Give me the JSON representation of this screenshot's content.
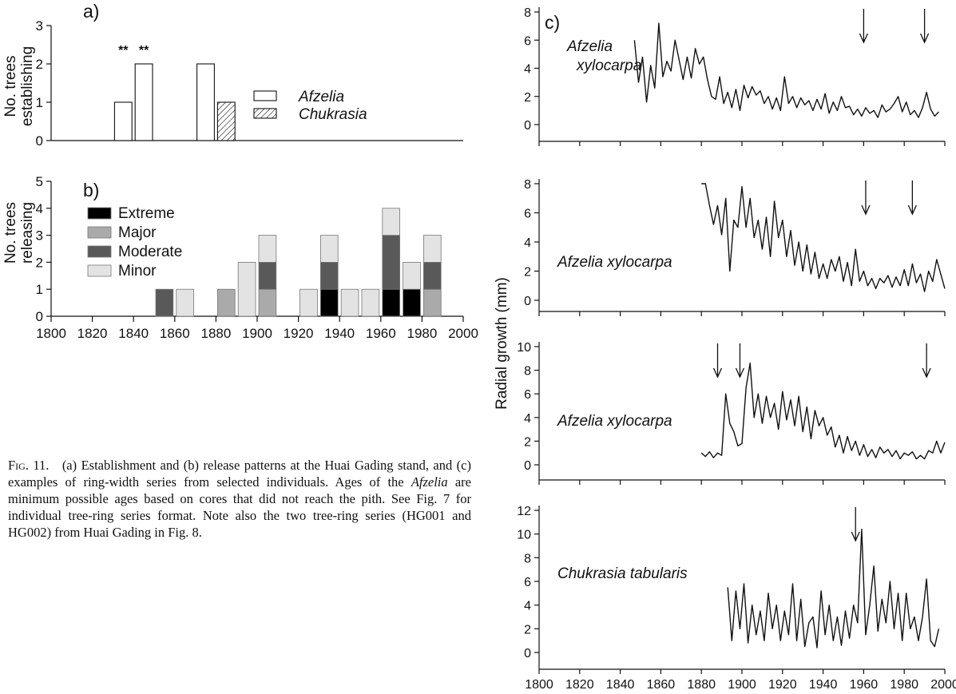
{
  "chart_data": [
    {
      "panel": "a)",
      "type": "bar",
      "ylabel": "No. trees establishing",
      "ylim": [
        0,
        3
      ],
      "yticks": [
        "0",
        "1",
        "2",
        "3"
      ],
      "xlim": [
        1800,
        2000
      ],
      "legend": [
        {
          "name": "Afzelia",
          "fill": "#ffffff",
          "pattern": "none"
        },
        {
          "name": "Chukrasia",
          "fill": "#ffffff",
          "pattern": "hatch"
        }
      ],
      "bars": [
        {
          "x": 1830,
          "value": 1,
          "species": "Afzelia"
        },
        {
          "x": 1840,
          "value": 2,
          "species": "Afzelia"
        },
        {
          "x": 1870,
          "value": 2,
          "species": "Afzelia"
        },
        {
          "x": 1880,
          "value": 1,
          "species": "Chukrasia"
        }
      ],
      "annotations": [
        {
          "x": 1835,
          "text": "**"
        },
        {
          "x": 1845,
          "text": "**"
        }
      ]
    },
    {
      "panel": "b)",
      "type": "bar",
      "stacked": true,
      "ylabel": "No. trees releasing",
      "ylim": [
        0,
        5
      ],
      "yticks": [
        "0",
        "1",
        "2",
        "3",
        "4",
        "5"
      ],
      "xlim": [
        1800,
        2000
      ],
      "xticks": [
        "1800",
        "1820",
        "1840",
        "1860",
        "1880",
        "1900",
        "1920",
        "1940",
        "1960",
        "1980",
        "2000"
      ],
      "series": [
        {
          "name": "Extreme",
          "color": "#000000"
        },
        {
          "name": "Major",
          "color": "#aaaaaa"
        },
        {
          "name": "Moderate",
          "color": "#595959"
        },
        {
          "name": "Minor",
          "color": "#e3e3e3"
        }
      ],
      "bars": [
        {
          "x": 1850,
          "values": [
            0,
            0,
            1,
            0
          ]
        },
        {
          "x": 1860,
          "values": [
            0,
            0,
            0,
            1
          ]
        },
        {
          "x": 1880,
          "values": [
            0,
            1,
            0,
            0
          ]
        },
        {
          "x": 1890,
          "values": [
            0,
            0,
            0,
            2
          ]
        },
        {
          "x": 1900,
          "values": [
            0,
            1,
            1,
            1
          ]
        },
        {
          "x": 1920,
          "values": [
            0,
            0,
            0,
            1
          ]
        },
        {
          "x": 1930,
          "values": [
            1,
            0,
            1,
            1
          ]
        },
        {
          "x": 1940,
          "values": [
            0,
            0,
            0,
            1
          ]
        },
        {
          "x": 1950,
          "values": [
            0,
            0,
            0,
            1
          ]
        },
        {
          "x": 1960,
          "values": [
            1,
            0,
            2,
            1
          ]
        },
        {
          "x": 1970,
          "values": [
            1,
            0,
            0,
            1
          ]
        },
        {
          "x": 1980,
          "values": [
            0,
            1,
            1,
            1
          ]
        }
      ]
    },
    {
      "panel": "c)",
      "type": "line",
      "ylabel": "Radial growth (mm)",
      "xlim": [
        1800,
        2000
      ],
      "xticks": [
        "1800",
        "1820",
        "1840",
        "1860",
        "1880",
        "1900",
        "1920",
        "1940",
        "1960",
        "1980",
        "2000"
      ],
      "series": [
        {
          "name": "Afzelia xylocarpa",
          "ylim": [
            0,
            8
          ],
          "yticks": [
            "0",
            "2",
            "4",
            "6",
            "8"
          ],
          "arrows": [
            1960,
            1990
          ],
          "x": [
            1847,
            1849,
            1851,
            1853,
            1855,
            1857,
            1859,
            1861,
            1863,
            1865,
            1867,
            1869,
            1871,
            1873,
            1875,
            1877,
            1879,
            1881,
            1883,
            1885,
            1887,
            1889,
            1891,
            1893,
            1895,
            1897,
            1899,
            1901,
            1903,
            1905,
            1907,
            1909,
            1911,
            1913,
            1915,
            1917,
            1919,
            1921,
            1923,
            1925,
            1927,
            1929,
            1931,
            1933,
            1935,
            1937,
            1939,
            1941,
            1943,
            1945,
            1947,
            1949,
            1951,
            1953,
            1955,
            1957,
            1959,
            1961,
            1963,
            1965,
            1967,
            1969,
            1971,
            1973,
            1975,
            1977,
            1979,
            1981,
            1983,
            1985,
            1987,
            1989,
            1991,
            1993,
            1995,
            1997
          ],
          "y": [
            6.0,
            3.0,
            4.8,
            1.6,
            4.2,
            2.6,
            7.2,
            3.4,
            4.5,
            3.8,
            6.0,
            4.6,
            3.2,
            4.8,
            3.3,
            5.4,
            4.3,
            4.8,
            3.2,
            2.0,
            1.8,
            3.4,
            1.5,
            2.3,
            1.2,
            2.5,
            1.0,
            2.8,
            1.9,
            2.7,
            2.1,
            2.4,
            1.5,
            2.0,
            1.1,
            1.9,
            1.0,
            3.4,
            1.5,
            2.0,
            1.2,
            1.9,
            1.4,
            1.7,
            1.0,
            1.8,
            1.1,
            2.2,
            0.8,
            1.6,
            1.0,
            2.0,
            1.2,
            1.3,
            0.7,
            1.1,
            0.6,
            1.2,
            0.8,
            1.0,
            0.5,
            1.4,
            0.9,
            1.1,
            1.5,
            2.0,
            0.9,
            1.6,
            0.7,
            1.0,
            0.5,
            1.2,
            2.3,
            1.1,
            0.6,
            0.9
          ]
        },
        {
          "name": "Afzelia xylocarpa",
          "ylim": [
            0,
            8
          ],
          "yticks": [
            "0",
            "2",
            "4",
            "6",
            "8"
          ],
          "arrows": [
            1961,
            1984
          ],
          "x": [
            1880,
            1882,
            1884,
            1886,
            1888,
            1890,
            1892,
            1894,
            1896,
            1898,
            1900,
            1902,
            1904,
            1906,
            1908,
            1910,
            1912,
            1914,
            1916,
            1918,
            1920,
            1922,
            1924,
            1926,
            1928,
            1930,
            1932,
            1934,
            1936,
            1938,
            1940,
            1942,
            1944,
            1946,
            1948,
            1950,
            1952,
            1954,
            1956,
            1958,
            1960,
            1962,
            1964,
            1966,
            1968,
            1970,
            1972,
            1974,
            1976,
            1978,
            1980,
            1982,
            1984,
            1986,
            1988,
            1990,
            1992,
            1994,
            1996,
            1998,
            2000
          ],
          "y": [
            8.0,
            8.0,
            6.5,
            5.2,
            6.5,
            4.5,
            7.0,
            2.0,
            5.5,
            5.0,
            7.8,
            5.0,
            7.0,
            4.3,
            5.5,
            3.5,
            5.7,
            3.0,
            6.8,
            4.3,
            5.5,
            3.0,
            4.8,
            2.4,
            4.0,
            2.0,
            3.8,
            1.8,
            3.3,
            1.5,
            2.5,
            1.5,
            2.8,
            2.0,
            3.0,
            1.3,
            2.6,
            1.0,
            3.5,
            1.3,
            2.0,
            1.0,
            1.5,
            0.8,
            1.5,
            1.2,
            1.7,
            0.9,
            1.6,
            1.0,
            2.1,
            1.0,
            2.5,
            1.2,
            1.8,
            0.6,
            2.0,
            1.3,
            2.8,
            1.8,
            0.8
          ]
        },
        {
          "name": "Afzelia xylocarpa",
          "ylim": [
            0,
            10
          ],
          "yticks": [
            "0",
            "2",
            "4",
            "6",
            "8",
            "10"
          ],
          "arrows": [
            1888,
            1899,
            1991
          ],
          "x": [
            1880,
            1882,
            1884,
            1886,
            1888,
            1890,
            1892,
            1894,
            1896,
            1898,
            1900,
            1902,
            1904,
            1906,
            1908,
            1910,
            1912,
            1914,
            1916,
            1918,
            1920,
            1922,
            1924,
            1926,
            1928,
            1930,
            1932,
            1934,
            1936,
            1938,
            1940,
            1942,
            1944,
            1946,
            1948,
            1950,
            1952,
            1954,
            1956,
            1958,
            1960,
            1962,
            1964,
            1966,
            1968,
            1970,
            1972,
            1974,
            1976,
            1978,
            1980,
            1982,
            1984,
            1986,
            1988,
            1990,
            1992,
            1994,
            1996,
            1998,
            2000
          ],
          "y": [
            1.0,
            0.7,
            1.1,
            0.6,
            1.0,
            0.8,
            6.0,
            3.5,
            2.8,
            1.6,
            1.8,
            6.5,
            8.6,
            4.0,
            6.0,
            3.5,
            5.8,
            4.0,
            5.2,
            3.0,
            6.2,
            3.8,
            5.5,
            3.3,
            5.8,
            2.8,
            4.9,
            2.2,
            4.6,
            3.3,
            4.0,
            2.5,
            3.2,
            1.5,
            2.5,
            1.0,
            2.4,
            1.2,
            2.0,
            0.8,
            1.7,
            0.7,
            1.3,
            0.6,
            1.5,
            1.0,
            1.3,
            0.7,
            1.2,
            0.5,
            1.0,
            0.8,
            1.1,
            0.5,
            0.8,
            0.5,
            1.2,
            1.0,
            2.0,
            1.0,
            1.9
          ]
        },
        {
          "name": "Chukrasia tabularis",
          "ylim": [
            0,
            12
          ],
          "yticks": [
            "0",
            "2",
            "4",
            "6",
            "8",
            "10",
            "12"
          ],
          "arrows": [
            1956
          ],
          "x": [
            1893,
            1895,
            1897,
            1899,
            1901,
            1903,
            1905,
            1907,
            1909,
            1911,
            1913,
            1915,
            1917,
            1919,
            1921,
            1923,
            1925,
            1927,
            1929,
            1931,
            1933,
            1935,
            1937,
            1939,
            1941,
            1943,
            1945,
            1947,
            1949,
            1951,
            1953,
            1955,
            1957,
            1959,
            1961,
            1963,
            1965,
            1967,
            1969,
            1971,
            1973,
            1975,
            1977,
            1979,
            1981,
            1983,
            1985,
            1987,
            1989,
            1991,
            1993,
            1995,
            1997
          ],
          "y": [
            5.5,
            1.0,
            5.2,
            2.0,
            5.8,
            0.8,
            4.0,
            1.5,
            3.5,
            1.0,
            5.0,
            2.0,
            4.0,
            1.0,
            3.5,
            1.5,
            5.8,
            1.0,
            4.5,
            0.5,
            2.5,
            3.0,
            0.4,
            5.2,
            1.5,
            4.0,
            1.0,
            3.0,
            0.6,
            3.5,
            1.2,
            4.0,
            2.5,
            10.4,
            1.5,
            4.0,
            7.3,
            1.8,
            4.5,
            2.5,
            6.0,
            2.0,
            5.0,
            1.0,
            5.0,
            2.0,
            3.0,
            1.0,
            3.0,
            6.2,
            1.0,
            0.5,
            2.0
          ]
        }
      ]
    }
  ],
  "caption": {
    "label": "Fig. 11.",
    "part1": "(a) Establishment and (b) release patterns at the Huai Gading stand, and (c) examples of ring-width series from selected individuals. Ages of the ",
    "italic": "Afzelia",
    "part2": " are minimum possible ages based on cores that did not reach the pith. See Fig. 7 for individual tree-ring series format. Note also the two tree-ring series (HG001 and HG002) from Huai Gading in Fig. 8."
  }
}
